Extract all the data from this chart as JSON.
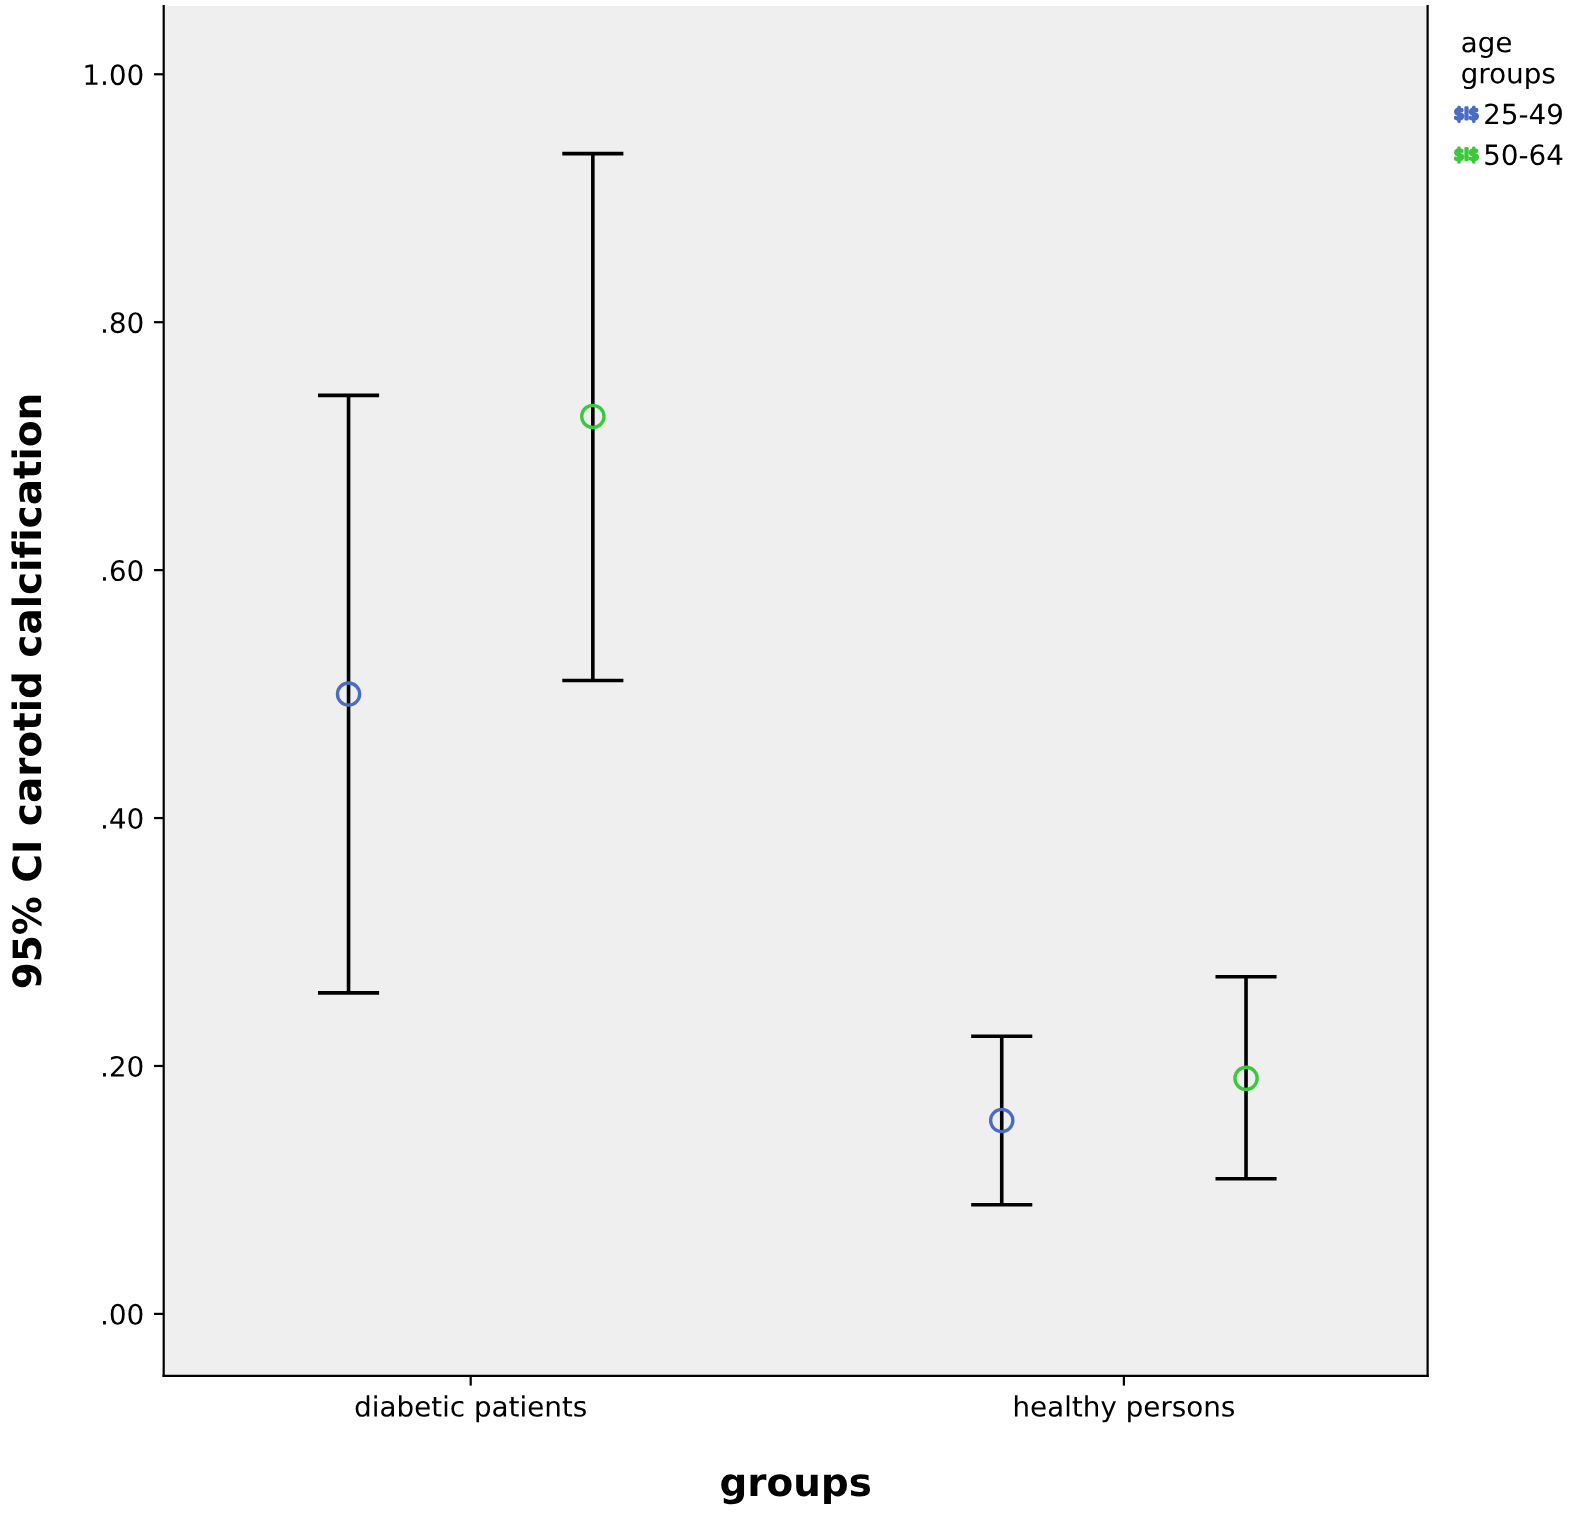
{
  "chart_data": {
    "type": "scatter",
    "xlabel": "groups",
    "ylabel": "95% CI carotid calcification",
    "legend_title": "age\ngroups",
    "categories": [
      "diabetic patients",
      "healthy persons"
    ],
    "series": [
      {
        "name": "25-49",
        "color": "#4a6cc4",
        "values": [
          0.5,
          0.156
        ],
        "errors": [
          [
            0.259,
            0.741
          ],
          [
            0.088,
            0.224
          ]
        ]
      },
      {
        "name": "50-64",
        "color": "#3cc83c",
        "values": [
          0.724,
          0.19
        ],
        "errors": [
          [
            0.511,
            0.936
          ],
          [
            0.109,
            0.272
          ]
        ]
      }
    ],
    "ylim": [
      -0.05,
      1.055
    ],
    "yticks": [
      {
        "value": 0,
        "label": ".00"
      },
      {
        "value": 0.2,
        "label": ".20"
      },
      {
        "value": 0.4,
        "label": ".40"
      },
      {
        "value": 0.6,
        "label": ".60"
      },
      {
        "value": 0.8,
        "label": ".80"
      },
      {
        "value": 1.0,
        "label": "1.00"
      }
    ],
    "marker": "circle",
    "grid": false,
    "legend": "top right"
  }
}
